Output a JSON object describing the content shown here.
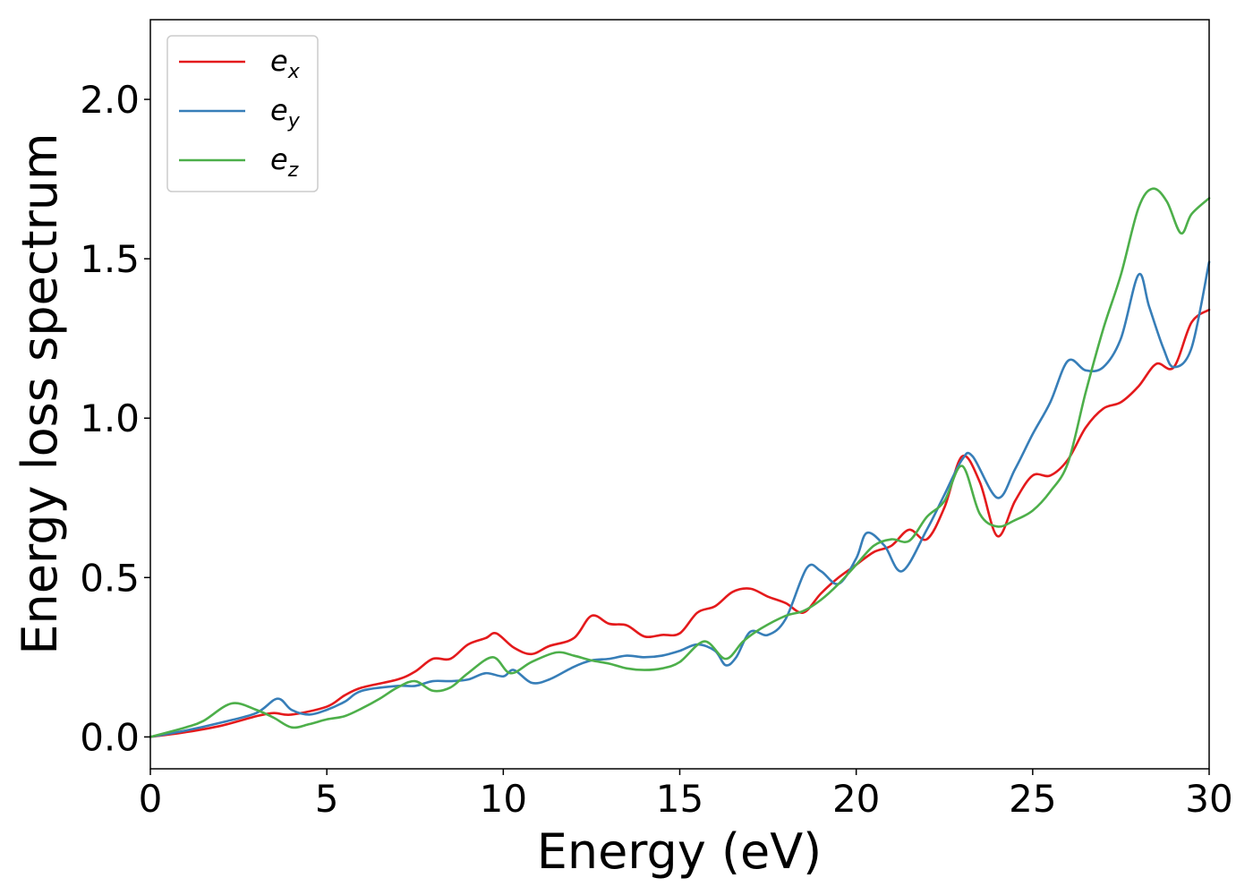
{
  "chart_data": {
    "type": "line",
    "title": "",
    "xlabel": "Energy (eV)",
    "ylabel": "Energy loss spectrum",
    "xlim": [
      0,
      30
    ],
    "ylim": [
      -0.1,
      2.25
    ],
    "xticks": [
      0,
      5,
      10,
      15,
      20,
      25,
      30
    ],
    "xtick_labels": [
      "0",
      "5",
      "10",
      "15",
      "20",
      "25",
      "30"
    ],
    "yticks": [
      0.0,
      0.5,
      1.0,
      1.5,
      2.0
    ],
    "ytick_labels": [
      "0.0",
      "0.5",
      "1.0",
      "1.5",
      "2.0"
    ],
    "grid": false,
    "legend_position": "top-left",
    "series": [
      {
        "name": "e_x",
        "legend_base": "e",
        "legend_sub": "x",
        "color": "#e41a1c",
        "x": [
          0,
          1,
          2,
          3,
          3.5,
          4,
          5,
          5.5,
          6,
          7,
          7.5,
          8,
          8.5,
          9,
          9.5,
          9.8,
          10.3,
          10.8,
          11.3,
          12,
          12.5,
          13,
          13.5,
          14,
          14.5,
          15,
          15.5,
          16,
          16.5,
          17,
          17.5,
          18,
          18.5,
          19,
          19.5,
          20,
          20.5,
          21,
          21.5,
          22,
          22.5,
          23,
          23.5,
          24,
          24.5,
          25,
          25.5,
          26,
          26.5,
          27,
          27.5,
          28,
          28.5,
          29,
          29.5,
          30
        ],
        "y": [
          0,
          0.015,
          0.035,
          0.065,
          0.075,
          0.07,
          0.095,
          0.13,
          0.155,
          0.18,
          0.205,
          0.245,
          0.245,
          0.29,
          0.31,
          0.325,
          0.28,
          0.26,
          0.285,
          0.31,
          0.38,
          0.355,
          0.35,
          0.315,
          0.32,
          0.325,
          0.39,
          0.41,
          0.455,
          0.465,
          0.44,
          0.42,
          0.39,
          0.45,
          0.5,
          0.54,
          0.58,
          0.6,
          0.65,
          0.62,
          0.72,
          0.88,
          0.8,
          0.63,
          0.74,
          0.82,
          0.82,
          0.87,
          0.97,
          1.03,
          1.05,
          1.1,
          1.17,
          1.16,
          1.3,
          1.34
        ]
      },
      {
        "name": "e_y",
        "legend_base": "e",
        "legend_sub": "y",
        "color": "#377eb8",
        "x": [
          0,
          1,
          2,
          3,
          3.6,
          4,
          4.5,
          5,
          5.5,
          6,
          7,
          7.5,
          8,
          8.5,
          9,
          9.5,
          10,
          10.3,
          10.8,
          11.3,
          12,
          12.5,
          13,
          13.5,
          14,
          14.5,
          15,
          15.5,
          16,
          16.3,
          16.6,
          17,
          17.5,
          18,
          18.6,
          19,
          19.5,
          20,
          20.3,
          20.8,
          21.3,
          22,
          22.5,
          23,
          23.3,
          24,
          24.5,
          25,
          25.5,
          26,
          26.5,
          27,
          27.5,
          28,
          28.3,
          28.7,
          29,
          29.5,
          30
        ],
        "y": [
          0,
          0.02,
          0.045,
          0.075,
          0.12,
          0.085,
          0.07,
          0.085,
          0.11,
          0.145,
          0.16,
          0.16,
          0.175,
          0.175,
          0.18,
          0.2,
          0.19,
          0.21,
          0.17,
          0.18,
          0.22,
          0.24,
          0.245,
          0.255,
          0.25,
          0.255,
          0.27,
          0.29,
          0.27,
          0.225,
          0.25,
          0.33,
          0.32,
          0.37,
          0.53,
          0.52,
          0.48,
          0.56,
          0.64,
          0.6,
          0.52,
          0.65,
          0.76,
          0.87,
          0.88,
          0.75,
          0.84,
          0.95,
          1.05,
          1.18,
          1.15,
          1.16,
          1.25,
          1.45,
          1.35,
          1.22,
          1.16,
          1.22,
          1.49
        ]
      },
      {
        "name": "e_z",
        "legend_base": "e",
        "legend_sub": "z",
        "color": "#4daf4a",
        "x": [
          0,
          1,
          1.5,
          2.3,
          3,
          3.5,
          4,
          4.5,
          5,
          5.5,
          6,
          6.5,
          7,
          7.5,
          8,
          8.5,
          9,
          9.7,
          10.2,
          10.8,
          11.5,
          12,
          12.5,
          13,
          13.5,
          14,
          14.5,
          15,
          15.7,
          16.3,
          16.8,
          17.3,
          18,
          18.5,
          19,
          19.5,
          20,
          20.5,
          21,
          21.5,
          22,
          22.5,
          23,
          23.5,
          24,
          24.5,
          25,
          25.5,
          26,
          26.5,
          27,
          27.5,
          28,
          28.4,
          28.8,
          29.2,
          29.5,
          30
        ],
        "y": [
          0,
          0.03,
          0.05,
          0.105,
          0.085,
          0.06,
          0.03,
          0.04,
          0.055,
          0.065,
          0.09,
          0.12,
          0.155,
          0.175,
          0.145,
          0.155,
          0.2,
          0.25,
          0.2,
          0.235,
          0.265,
          0.255,
          0.24,
          0.23,
          0.215,
          0.21,
          0.215,
          0.235,
          0.3,
          0.245,
          0.3,
          0.34,
          0.38,
          0.395,
          0.43,
          0.48,
          0.54,
          0.6,
          0.62,
          0.615,
          0.69,
          0.74,
          0.85,
          0.7,
          0.66,
          0.68,
          0.71,
          0.77,
          0.86,
          1.08,
          1.28,
          1.45,
          1.66,
          1.72,
          1.68,
          1.58,
          1.64,
          1.69
        ]
      }
    ]
  }
}
